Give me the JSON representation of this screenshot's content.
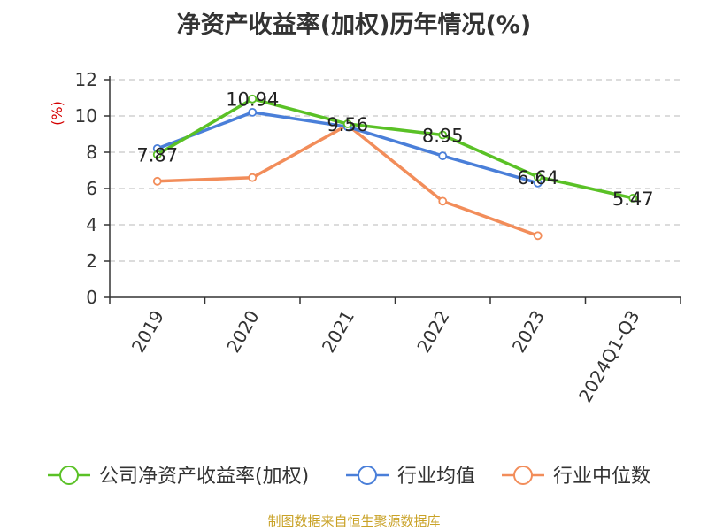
{
  "title": "净资产收益率(加权)历年情况(%)",
  "source": "制图数据来自恒生聚源数据库",
  "chart_data": {
    "type": "line",
    "title": "净资产收益率(加权)历年情况(%)",
    "ylabel": "(%)",
    "xlabel": "",
    "ylim": [
      0,
      12
    ],
    "yticks": [
      "0",
      "2",
      "4",
      "6",
      "8",
      "10",
      "12"
    ],
    "categories": [
      "2019",
      "2020",
      "2021",
      "2022",
      "2023",
      "2024Q1-Q3"
    ],
    "grid": true,
    "legend": "bottom",
    "series": [
      {
        "name": "公司净资产收益率(加权)",
        "color": "#5ac126",
        "values": [
          7.87,
          10.94,
          9.56,
          8.95,
          6.64,
          5.47
        ],
        "labels": [
          "7.87",
          "10.94",
          "9.56",
          "8.95",
          "6.64",
          "5.47"
        ]
      },
      {
        "name": "行业均值",
        "color": "#4a7fd9",
        "values": [
          8.2,
          10.2,
          9.4,
          7.8,
          6.3,
          null
        ]
      },
      {
        "name": "行业中位数",
        "color": "#f28d5a",
        "values": [
          6.4,
          6.6,
          9.5,
          5.3,
          3.4,
          null
        ]
      }
    ]
  }
}
